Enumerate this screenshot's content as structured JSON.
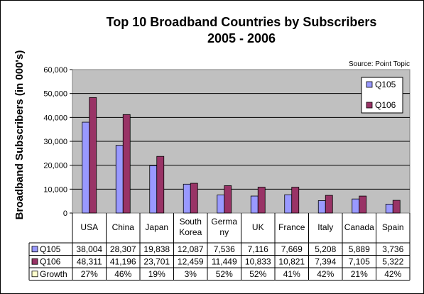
{
  "chart_data": {
    "type": "bar",
    "title_line1": "Top 10 Broadband Countries by Subscribers",
    "title_line2": "2005 - 2006",
    "source": "Source: Point Topic",
    "ylabel": "Broadband Subscribers (in 000's)",
    "xlabel": "",
    "ylim": [
      0,
      60000
    ],
    "yticks": [
      0,
      10000,
      20000,
      30000,
      40000,
      50000,
      60000
    ],
    "ytick_labels": [
      "0",
      "10,000",
      "20,000",
      "30,000",
      "40,000",
      "50,000",
      "60,000"
    ],
    "grid": true,
    "legend_position": "top-right",
    "categories": [
      "USA",
      "China",
      "Japan",
      "South Korea",
      "Germany",
      "UK",
      "France",
      "Italy",
      "Canada",
      "Spain"
    ],
    "category_lines": [
      [
        "USA"
      ],
      [
        "China"
      ],
      [
        "Japan"
      ],
      [
        "South",
        "Korea"
      ],
      [
        "Germa",
        "ny"
      ],
      [
        "UK"
      ],
      [
        "France"
      ],
      [
        "Italy"
      ],
      [
        "Canada"
      ],
      [
        "Spain"
      ]
    ],
    "series": [
      {
        "name": "Q105",
        "color": "#9999ff",
        "values": [
          38004,
          28307,
          19838,
          12087,
          7536,
          7116,
          7669,
          5208,
          5889,
          3736
        ],
        "labels": [
          "38,004",
          "28,307",
          "19,838",
          "12,087",
          "7,536",
          "7,116",
          "7,669",
          "5,208",
          "5,889",
          "3,736"
        ]
      },
      {
        "name": "Q106",
        "color": "#993366",
        "values": [
          48311,
          41196,
          23701,
          12459,
          11449,
          10833,
          10821,
          7394,
          7105,
          5322
        ],
        "labels": [
          "48,311",
          "41,196",
          "23,701",
          "12,459",
          "11,449",
          "10,833",
          "10,821",
          "7,394",
          "7,105",
          "5,322"
        ]
      }
    ],
    "growth": {
      "name": "Growth",
      "color": "#ffffcc",
      "values": [
        "27%",
        "46%",
        "19%",
        "3%",
        "52%",
        "52%",
        "41%",
        "42%",
        "21%",
        "42%"
      ]
    },
    "plot_background": "#c0c0c0"
  }
}
